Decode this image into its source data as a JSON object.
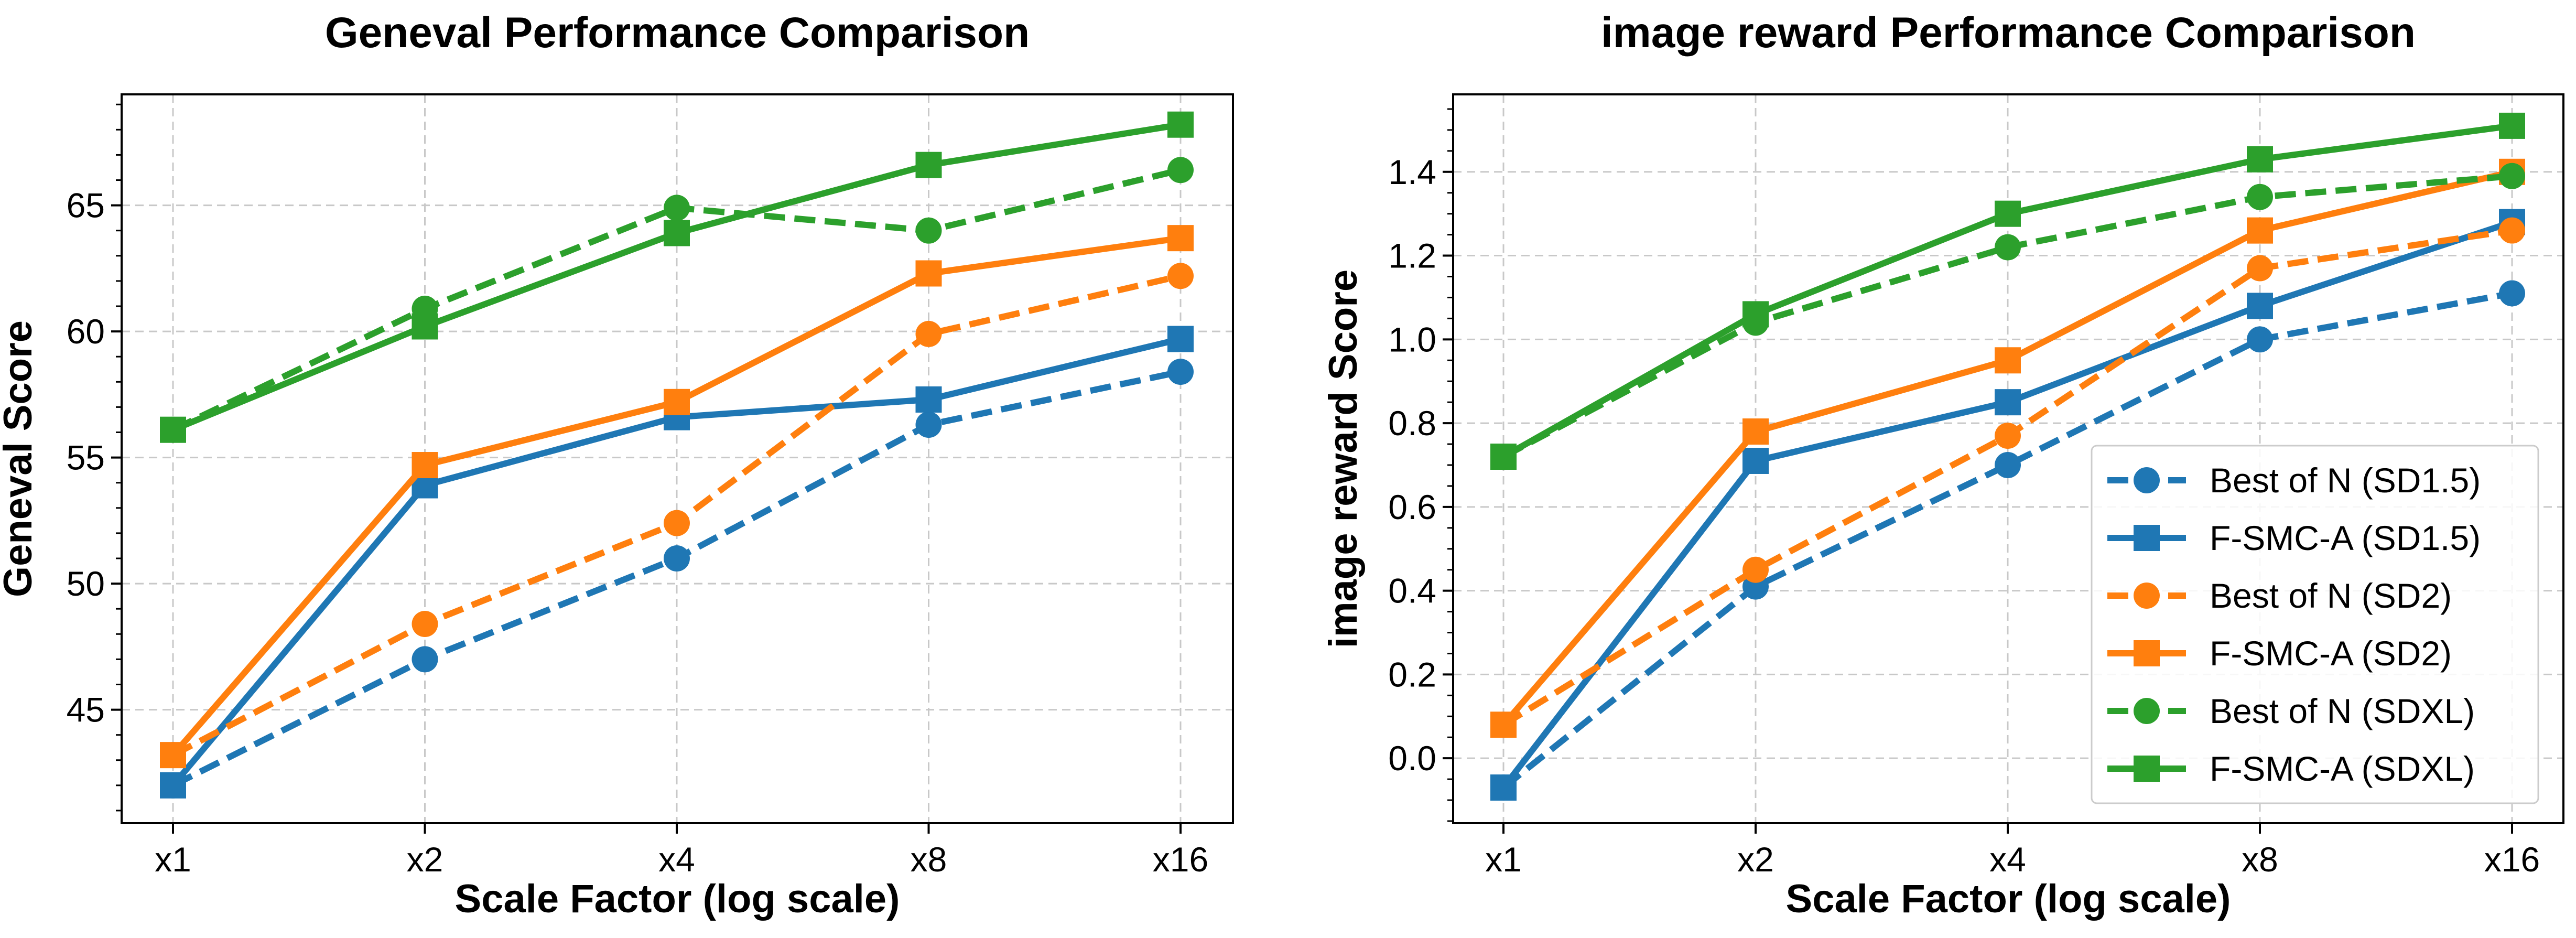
{
  "colors": {
    "blue": "#1f77b4",
    "orange": "#ff7f0e",
    "green": "#2ca02c",
    "grid": "#c8c8c8",
    "legend_border": "#cccccc"
  },
  "chart_data": [
    {
      "type": "line",
      "title": "Geneval Performance Comparison",
      "xlabel": "Scale Factor (log scale)",
      "ylabel": "Geneval Score",
      "categories": [
        "x1",
        "x2",
        "x4",
        "x8",
        "x16"
      ],
      "ylim": [
        40.5,
        69.4
      ],
      "yticks": [
        45,
        50,
        55,
        60,
        65
      ],
      "yminor": 1,
      "grid": true,
      "legend": null,
      "series": [
        {
          "name": "Best of N (SD1.5)",
          "color": "blue",
          "linestyle": "dashed",
          "marker": "circle",
          "values": [
            42.0,
            47.0,
            51.0,
            56.3,
            58.4
          ]
        },
        {
          "name": "F-SMC-A (SD1.5)",
          "color": "blue",
          "linestyle": "solid",
          "marker": "square",
          "values": [
            42.0,
            53.9,
            56.6,
            57.3,
            59.7
          ]
        },
        {
          "name": "Best of N (SD2)",
          "color": "orange",
          "linestyle": "dashed",
          "marker": "circle",
          "values": [
            43.2,
            48.4,
            52.4,
            59.9,
            62.2
          ]
        },
        {
          "name": "F-SMC-A (SD2)",
          "color": "orange",
          "linestyle": "solid",
          "marker": "square",
          "values": [
            43.2,
            54.7,
            57.2,
            62.3,
            63.7
          ]
        },
        {
          "name": "Best of N (SDXL)",
          "color": "green",
          "linestyle": "dashed",
          "marker": "circle",
          "values": [
            56.1,
            60.9,
            64.9,
            64.0,
            66.4
          ]
        },
        {
          "name": "F-SMC-A (SDXL)",
          "color": "green",
          "linestyle": "solid",
          "marker": "square",
          "values": [
            56.1,
            60.2,
            63.9,
            66.6,
            68.2
          ]
        }
      ]
    },
    {
      "type": "line",
      "title": "image reward Performance Comparison",
      "xlabel": "Scale Factor (log scale)",
      "ylabel": "image reward Score",
      "categories": [
        "x1",
        "x2",
        "x4",
        "x8",
        "x16"
      ],
      "ylim": [
        -0.155,
        1.585
      ],
      "yticks": [
        0.0,
        0.2,
        0.4,
        0.6,
        0.8,
        1.0,
        1.2,
        1.4
      ],
      "yminor": 0.05,
      "grid": true,
      "legend": "lower right",
      "series": [
        {
          "name": "Best of N (SD1.5)",
          "color": "blue",
          "linestyle": "dashed",
          "marker": "circle",
          "values": [
            -0.07,
            0.41,
            0.7,
            1.0,
            1.11
          ]
        },
        {
          "name": "F-SMC-A (SD1.5)",
          "color": "blue",
          "linestyle": "solid",
          "marker": "square",
          "values": [
            -0.07,
            0.71,
            0.85,
            1.08,
            1.28
          ]
        },
        {
          "name": "Best of N (SD2)",
          "color": "orange",
          "linestyle": "dashed",
          "marker": "circle",
          "values": [
            0.08,
            0.45,
            0.77,
            1.17,
            1.26
          ]
        },
        {
          "name": "F-SMC-A (SD2)",
          "color": "orange",
          "linestyle": "solid",
          "marker": "square",
          "values": [
            0.08,
            0.78,
            0.95,
            1.26,
            1.4
          ]
        },
        {
          "name": "Best of N (SDXL)",
          "color": "green",
          "linestyle": "dashed",
          "marker": "circle",
          "values": [
            0.72,
            1.04,
            1.22,
            1.34,
            1.39
          ]
        },
        {
          "name": "F-SMC-A (SDXL)",
          "color": "green",
          "linestyle": "solid",
          "marker": "square",
          "values": [
            0.72,
            1.06,
            1.3,
            1.43,
            1.51
          ]
        }
      ]
    }
  ]
}
